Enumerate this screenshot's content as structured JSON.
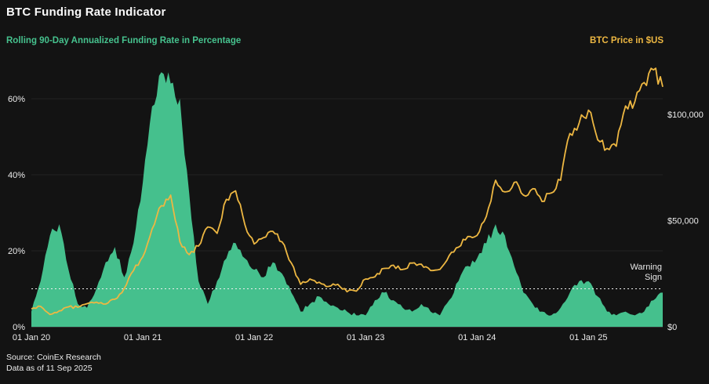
{
  "header": {
    "title": "BTC Funding Rate Indicator"
  },
  "axes_titles": {
    "left": "Rolling 90-Day Annualized Funding Rate in Percentage",
    "right": "BTC Price in $US"
  },
  "annotations": {
    "warning_line1": "Warning",
    "warning_line2": "Sign"
  },
  "footer": {
    "source": "Source: CoinEx Research",
    "as_of": "Data as of 11 Sep 2025"
  },
  "colors": {
    "background": "#131313",
    "funding_area": "#45c08d",
    "price_line": "#edb742",
    "grid": "rgba(255,255,255,0.07)",
    "axis_line": "rgba(255,255,255,0.25)",
    "warning_line": "#f0f0f0",
    "text": "#ececec"
  },
  "chart_data": {
    "type": "area+line",
    "title": "BTC Funding Rate Indicator",
    "interval": "monthly",
    "x_start": "Jan 2020",
    "x_end": "Sep 2025",
    "x_tick_labels": [
      "01 Jan 20",
      "01 Jan 21",
      "01 Jan 22",
      "01 Jan 23",
      "01 Jan 24",
      "01 Jan 25"
    ],
    "x_tick_month_index": [
      0,
      12,
      24,
      36,
      48,
      60
    ],
    "left_axis": {
      "label": "Rolling 90-Day Annualized Funding Rate in Percentage",
      "unit": "%",
      "ticks": [
        0,
        20,
        40,
        60
      ],
      "tick_labels": [
        "0%",
        "20%",
        "40%",
        "60%"
      ],
      "range": [
        0,
        68
      ]
    },
    "right_axis": {
      "label": "BTC Price in $US",
      "unit": "$",
      "ticks": [
        0,
        50000,
        100000
      ],
      "tick_labels": [
        "$0",
        "$50,000",
        "$100,000"
      ],
      "range": [
        0,
        123000
      ]
    },
    "warning_level_pct": 10,
    "series": [
      {
        "name": "funding_rate_pct",
        "type": "area",
        "axis": "left",
        "values": [
          4,
          12,
          24,
          27,
          15,
          6,
          5,
          10,
          17,
          21,
          13,
          22,
          38,
          58,
          67,
          64,
          60,
          35,
          12,
          6,
          12,
          18,
          22,
          18,
          15,
          13,
          17,
          14,
          9,
          4,
          6,
          8,
          6,
          5,
          4,
          3,
          3,
          7,
          9,
          7,
          5,
          4,
          6,
          4,
          3,
          7,
          12,
          16,
          18,
          22,
          27,
          24,
          16,
          9,
          6,
          4,
          3,
          5,
          9,
          12,
          12,
          8,
          4,
          3,
          4,
          3,
          4,
          7,
          9
        ]
      },
      {
        "name": "btc_price_usd",
        "type": "line",
        "axis": "right",
        "values": [
          8500,
          9600,
          5800,
          7500,
          9400,
          9200,
          10900,
          11600,
          10700,
          13000,
          18000,
          26500,
          33000,
          46000,
          57000,
          62000,
          40000,
          34000,
          38000,
          47000,
          44000,
          60000,
          64000,
          48000,
          39000,
          42000,
          45000,
          40000,
          30000,
          20000,
          22500,
          21000,
          19000,
          20000,
          16500,
          16800,
          22500,
          23500,
          27500,
          29000,
          27000,
          30000,
          29500,
          26500,
          27000,
          33500,
          37500,
          42500,
          43000,
          52000,
          69000,
          63500,
          68000,
          62000,
          65000,
          59000,
          63000,
          69000,
          91000,
          96000,
          102000,
          88000,
          84000,
          85000,
          104000,
          106000,
          115000,
          121000,
          113000
        ]
      }
    ]
  }
}
